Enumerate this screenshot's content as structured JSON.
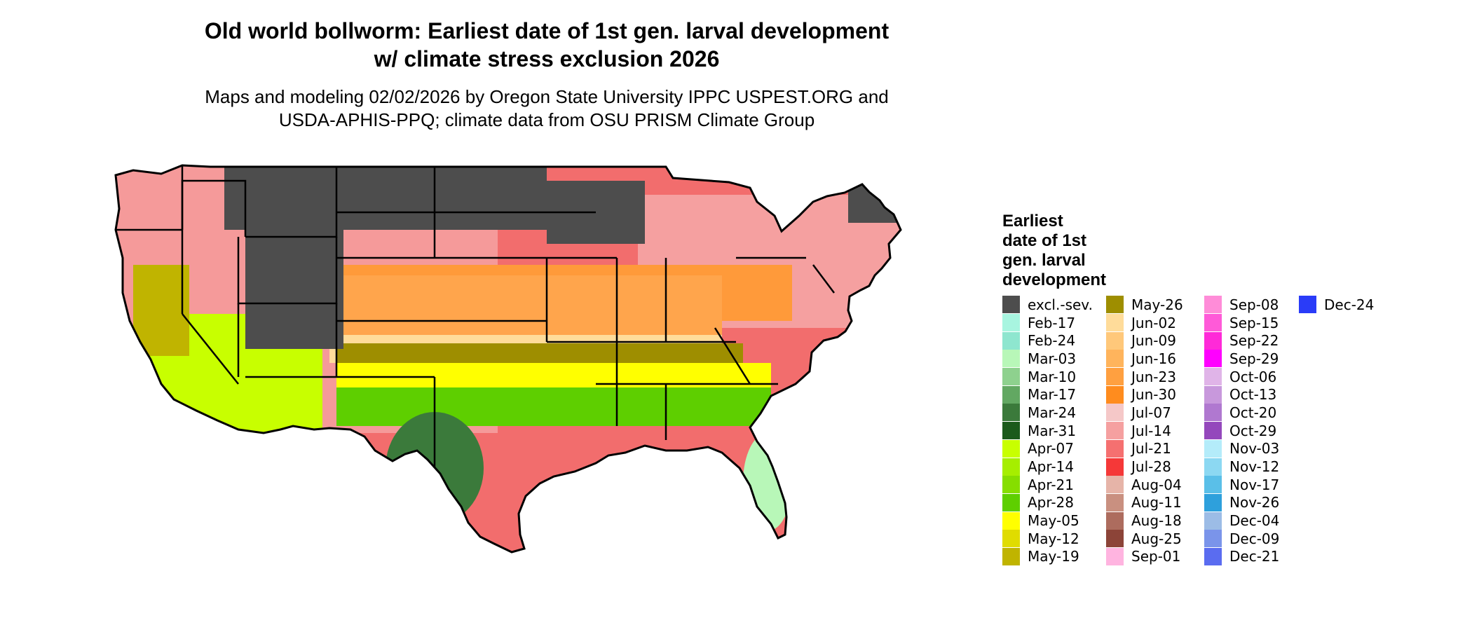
{
  "map": {
    "title_line1": "Old world bollworm: Earliest date of 1st gen. larval development",
    "title_line2": "w/ climate stress exclusion 2026",
    "subtitle_line1": "Maps and modeling 02/02/2026 by Oregon State University IPPC USPEST.ORG and",
    "subtitle_line2": "USDA-APHIS-PPQ; climate data from OSU PRISM Climate Group"
  },
  "legend": {
    "title_lines": [
      "Earliest",
      "date of 1st",
      "gen. larval",
      "development"
    ],
    "columns": [
      [
        {
          "label": "excl.-sev.",
          "color": "#4d4d4d"
        },
        {
          "label": "Feb-17",
          "color": "#a8f5e0"
        },
        {
          "label": "Feb-24",
          "color": "#8ee6cf"
        },
        {
          "label": "Mar-03",
          "color": "#b8f7b8"
        },
        {
          "label": "Mar-10",
          "color": "#8ed18e"
        },
        {
          "label": "Mar-17",
          "color": "#62a862"
        },
        {
          "label": "Mar-24",
          "color": "#3b7a3b"
        },
        {
          "label": "Mar-31",
          "color": "#1b5a1b"
        },
        {
          "label": "Apr-07",
          "color": "#c8ff00"
        },
        {
          "label": "Apr-14",
          "color": "#a6ee00"
        },
        {
          "label": "Apr-21",
          "color": "#86de00"
        },
        {
          "label": "Apr-28",
          "color": "#5ecf00"
        },
        {
          "label": "May-05",
          "color": "#ffff00"
        },
        {
          "label": "May-12",
          "color": "#e0dc00"
        },
        {
          "label": "May-19",
          "color": "#c0b400"
        }
      ],
      [
        {
          "label": "May-26",
          "color": "#9e8e00"
        },
        {
          "label": "Jun-02",
          "color": "#ffdc9a"
        },
        {
          "label": "Jun-09",
          "color": "#ffc87a"
        },
        {
          "label": "Jun-16",
          "color": "#ffb45c"
        },
        {
          "label": "Jun-23",
          "color": "#ffa040"
        },
        {
          "label": "Jun-30",
          "color": "#ff8c1e"
        },
        {
          "label": "Jul-07",
          "color": "#f5c8c8"
        },
        {
          "label": "Jul-14",
          "color": "#f5a0a0"
        },
        {
          "label": "Jul-21",
          "color": "#f57070"
        },
        {
          "label": "Jul-28",
          "color": "#f53838"
        },
        {
          "label": "Aug-04",
          "color": "#e6b4a8"
        },
        {
          "label": "Aug-11",
          "color": "#c99080"
        },
        {
          "label": "Aug-18",
          "color": "#ad6c5e"
        },
        {
          "label": "Aug-25",
          "color": "#8c4438"
        },
        {
          "label": "Sep-01",
          "color": "#ffb4e0"
        }
      ],
      [
        {
          "label": "Sep-08",
          "color": "#ff8cd8"
        },
        {
          "label": "Sep-15",
          "color": "#ff5ad8"
        },
        {
          "label": "Sep-22",
          "color": "#ff2ad8"
        },
        {
          "label": "Sep-29",
          "color": "#ff00ff"
        },
        {
          "label": "Oct-06",
          "color": "#e0b4e8"
        },
        {
          "label": "Oct-13",
          "color": "#c898dc"
        },
        {
          "label": "Oct-20",
          "color": "#b078d0"
        },
        {
          "label": "Oct-29",
          "color": "#9448bc"
        },
        {
          "label": "Nov-03",
          "color": "#b4ecfa"
        },
        {
          "label": "Nov-12",
          "color": "#8cd8f2"
        },
        {
          "label": "Nov-17",
          "color": "#5abfe8"
        },
        {
          "label": "Nov-26",
          "color": "#2ea0dc"
        },
        {
          "label": "Dec-04",
          "color": "#9cbce6"
        },
        {
          "label": "Dec-09",
          "color": "#7a94ea"
        },
        {
          "label": "Dec-21",
          "color": "#5a6cf0"
        }
      ],
      [
        {
          "label": "Dec-24",
          "color": "#2a3cf8"
        }
      ]
    ]
  }
}
